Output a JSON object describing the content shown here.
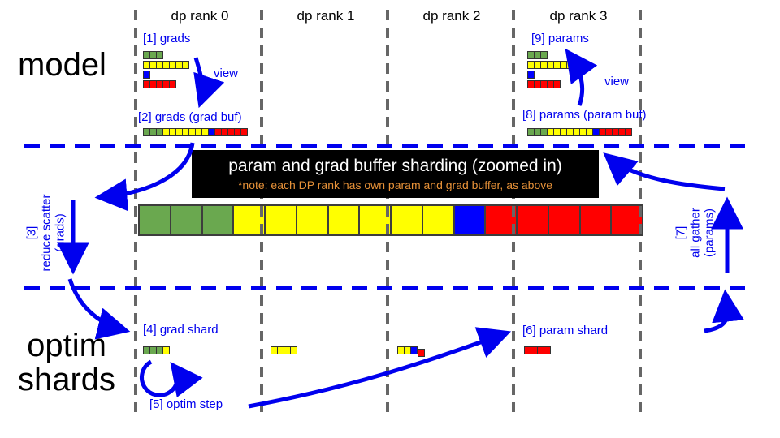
{
  "colors": {
    "green": "#6aa84f",
    "yellow": "#ffff00",
    "blue": "#0000ff",
    "red": "#ff0000",
    "arrow_blue": "#0000ee",
    "dash_gray": "#666666",
    "note_orange": "#e69138"
  },
  "headers": {
    "rank0": "dp rank 0",
    "rank1": "dp rank 1",
    "rank2": "dp rank 2",
    "rank3": "dp rank 3"
  },
  "left_labels": {
    "model": "model",
    "optim_line1": "optim",
    "optim_line2": "shards"
  },
  "annotations": {
    "grads1": "[1] grads",
    "grads2": "[2] grads (grad buf)",
    "params9": "[9] params",
    "params8": "[8] params (param buf)",
    "view_left": "view",
    "view_right": "view",
    "step3": [
      "[3]",
      "reduce scatter",
      "(grads)"
    ],
    "step7": [
      "[7]",
      "all gather",
      "(params)"
    ],
    "step4": "[4] grad shard",
    "step5": "[5] optim step",
    "step6": "[6] param shard"
  },
  "banner": {
    "title": "param and grad buffer sharding (zoomed in)",
    "note": "*note: each DP rank has own param and grad buffer, as above"
  },
  "chart_data": {
    "type": "diagram-bars",
    "model_view_rows": [
      {
        "color": "green",
        "cells": 3
      },
      {
        "color": "yellow",
        "cells": 7
      },
      {
        "color": "blue",
        "cells": 1
      },
      {
        "color": "red",
        "cells": 5
      }
    ],
    "grad_buffer_segments": [
      {
        "color": "green",
        "cells": 3
      },
      {
        "color": "yellow",
        "cells": 7
      },
      {
        "color": "blue",
        "cells": 1
      },
      {
        "color": "red",
        "cells": 5
      }
    ],
    "param_buffer_segments": [
      {
        "color": "green",
        "cells": 3
      },
      {
        "color": "yellow",
        "cells": 7
      },
      {
        "color": "blue",
        "cells": 1
      },
      {
        "color": "red",
        "cells": 5
      }
    ],
    "zoomed_buffer_segments": [
      {
        "color": "green",
        "cells": 3
      },
      {
        "color": "yellow",
        "cells": 7
      },
      {
        "color": "blue",
        "cells": 1
      },
      {
        "color": "red",
        "cells": 5
      }
    ],
    "shards": {
      "rank0": [
        {
          "color": "green",
          "cells": 3
        },
        {
          "color": "yellow",
          "cells": 1
        }
      ],
      "rank1": [
        {
          "color": "yellow",
          "cells": 4
        }
      ],
      "rank2": [
        {
          "color": "yellow",
          "cells": 2
        },
        {
          "color": "blue",
          "cells": 1
        },
        {
          "color": "red",
          "cells": 1
        }
      ],
      "rank3": [
        {
          "color": "red",
          "cells": 4
        }
      ]
    }
  }
}
